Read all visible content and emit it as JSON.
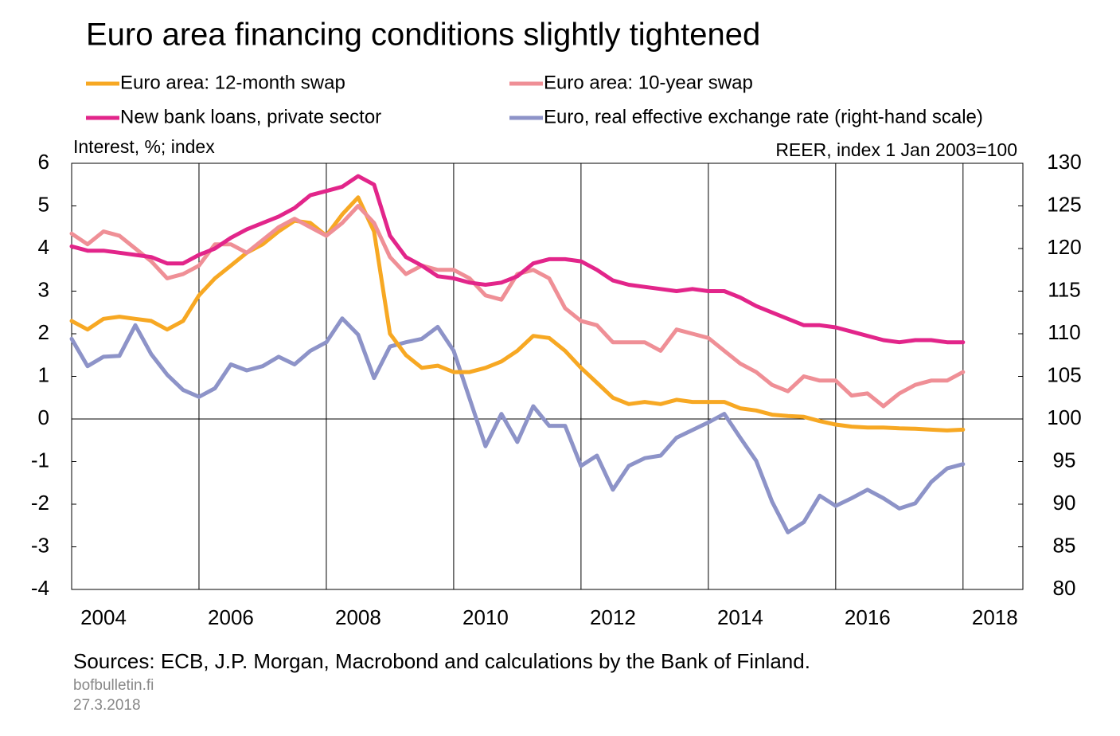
{
  "chart_data": {
    "type": "line",
    "title": "Euro area financing conditions slightly tightened",
    "y_label": "Interest, %; index",
    "y2_label": "REER, index 1 Jan 2003=100",
    "source": "Sources: ECB, J.P. Morgan, Macrobond and calculations by the Bank of Finland.",
    "site": "bofbulletin.fi",
    "date": "27.3.2018",
    "x": [
      2004,
      2004.25,
      2004.5,
      2004.75,
      2005,
      2005.25,
      2005.5,
      2005.75,
      2006,
      2006.25,
      2006.5,
      2006.75,
      2007,
      2007.25,
      2007.5,
      2007.75,
      2008,
      2008.25,
      2008.5,
      2008.75,
      2009,
      2009.25,
      2009.5,
      2009.75,
      2010,
      2010.25,
      2010.5,
      2010.75,
      2011,
      2011.25,
      2011.5,
      2011.75,
      2012,
      2012.25,
      2012.5,
      2012.75,
      2013,
      2013.25,
      2013.5,
      2013.75,
      2014,
      2014.25,
      2014.5,
      2014.75,
      2015,
      2015.25,
      2015.5,
      2015.75,
      2016,
      2016.25,
      2016.5,
      2016.75,
      2017,
      2017.25,
      2017.5,
      2017.75,
      2018
    ],
    "xlim": [
      2004,
      2018.94
    ],
    "xticks": [
      2004,
      2006,
      2008,
      2010,
      2012,
      2014,
      2016,
      2018
    ],
    "ylim": [
      -4,
      6
    ],
    "yticks": [
      -4,
      -3,
      -2,
      -1,
      0,
      1,
      2,
      3,
      4,
      5,
      6
    ],
    "y2lim": [
      80,
      130
    ],
    "y2ticks": [
      80,
      85,
      90,
      95,
      100,
      105,
      110,
      115,
      120,
      125,
      130
    ],
    "grid": true,
    "series": [
      {
        "name": "Euro area: 12-month swap",
        "color": "#f7a823",
        "values": [
          2.3,
          2.1,
          2.35,
          2.4,
          2.35,
          2.3,
          2.1,
          2.3,
          2.9,
          3.3,
          3.6,
          3.9,
          4.1,
          4.4,
          4.65,
          4.6,
          4.3,
          4.8,
          5.2,
          4.4,
          2.0,
          1.5,
          1.2,
          1.25,
          1.1,
          1.1,
          1.2,
          1.35,
          1.6,
          1.95,
          1.9,
          1.6,
          1.2,
          0.85,
          0.5,
          0.35,
          0.4,
          0.35,
          0.45,
          0.4,
          0.4,
          0.4,
          0.25,
          0.2,
          0.1,
          0.07,
          0.05,
          -0.05,
          -0.13,
          -0.18,
          -0.2,
          -0.2,
          -0.22,
          -0.23,
          -0.25,
          -0.27,
          -0.25
        ]
      },
      {
        "name": "Euro area: 10-year swap",
        "color": "#ef8f96",
        "values": [
          4.35,
          4.1,
          4.4,
          4.3,
          4.0,
          3.7,
          3.3,
          3.4,
          3.6,
          4.1,
          4.1,
          3.9,
          4.2,
          4.5,
          4.7,
          4.5,
          4.3,
          4.6,
          5.0,
          4.6,
          3.8,
          3.4,
          3.6,
          3.5,
          3.5,
          3.3,
          2.9,
          2.8,
          3.4,
          3.5,
          3.3,
          2.6,
          2.3,
          2.2,
          1.8,
          1.8,
          1.8,
          1.6,
          2.1,
          2.0,
          1.9,
          1.6,
          1.3,
          1.1,
          0.8,
          0.65,
          1.0,
          0.9,
          0.9,
          0.55,
          0.6,
          0.3,
          0.6,
          0.8,
          0.9,
          0.9,
          1.1
        ]
      },
      {
        "name": "New bank loans, private sector",
        "color": "#e2258a",
        "values": [
          4.05,
          3.95,
          3.95,
          3.9,
          3.85,
          3.8,
          3.65,
          3.65,
          3.85,
          4.0,
          4.25,
          4.45,
          4.6,
          4.75,
          4.95,
          5.25,
          5.35,
          5.45,
          5.7,
          5.5,
          4.3,
          3.8,
          3.6,
          3.35,
          3.3,
          3.2,
          3.15,
          3.2,
          3.35,
          3.65,
          3.75,
          3.75,
          3.7,
          3.5,
          3.25,
          3.15,
          3.1,
          3.05,
          3.0,
          3.05,
          3.0,
          3.0,
          2.85,
          2.65,
          2.5,
          2.35,
          2.2,
          2.2,
          2.15,
          2.05,
          1.95,
          1.85,
          1.8,
          1.85,
          1.85,
          1.8,
          1.8
        ]
      },
      {
        "name": "Euro, real effective exchange rate (right-hand scale)",
        "color": "#8d93c8",
        "axis": "y2",
        "values": [
          109.4,
          106.2,
          107.3,
          107.4,
          111,
          107.6,
          105.2,
          103.4,
          102.6,
          103.6,
          106.4,
          105.7,
          106.2,
          107.3,
          106.4,
          108,
          109,
          111.8,
          109.9,
          104.8,
          108.5,
          109,
          109.4,
          110.8,
          108,
          102.4,
          96.8,
          100.6,
          97.3,
          101.5,
          99.2,
          99.2,
          94.5,
          95.7,
          91.7,
          94.5,
          95.4,
          95.7,
          97.8,
          98.7,
          99.6,
          100.6,
          97.8,
          95.1,
          90.3,
          86.7,
          87.9,
          91,
          89.8,
          90.7,
          91.7,
          90.7,
          89.5,
          90.1,
          92.6,
          94.2,
          94.7
        ]
      }
    ]
  }
}
